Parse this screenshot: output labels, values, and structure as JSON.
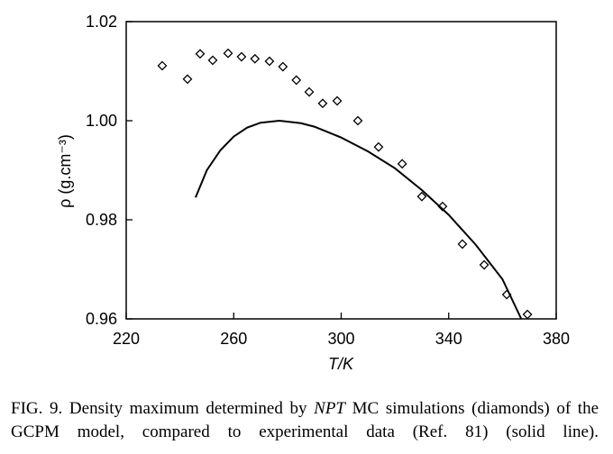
{
  "chart_data": {
    "type": "scatter",
    "xlabel": "T/K",
    "ylabel": "ρ (g.cm⁻³)",
    "xlim": [
      220,
      380
    ],
    "xticks": [
      220,
      260,
      300,
      340,
      380
    ],
    "ylim": [
      0.96,
      1.02
    ],
    "yticks": [
      0.96,
      0.98,
      {
        "value": 1.0,
        "label": "1.00"
      },
      1.02
    ],
    "series": [
      {
        "type": "scatter",
        "marker": "diamond",
        "color": "#000000",
        "x": [
          233.4,
          242.8,
          247.5,
          252.2,
          257.9,
          262.9,
          267.9,
          273.3,
          278.3,
          283.3,
          288.1,
          293.1,
          298.5,
          306.2,
          313.9,
          322.7,
          330.0,
          337.7,
          345.1,
          353.2,
          361.6,
          369.3
        ],
        "values": [
          1.0111,
          1.0084,
          1.0135,
          1.0122,
          1.0136,
          1.0129,
          1.0125,
          1.012,
          1.0109,
          1.0082,
          1.0058,
          1.0035,
          1.004,
          1.0,
          0.9947,
          0.9913,
          0.9847,
          0.9827,
          0.9751,
          0.9709,
          0.9649,
          0.9609
        ]
      },
      {
        "type": "line",
        "color": "#000000",
        "x": [
          245.8,
          250,
          255,
          260,
          265,
          270,
          277,
          285,
          290,
          300,
          310,
          320,
          330,
          340,
          350,
          360,
          367
        ],
        "values": [
          0.9845,
          0.99,
          0.994,
          0.9968,
          0.9986,
          0.9996,
          1.0,
          0.9995,
          0.9988,
          0.9966,
          0.9938,
          0.9904,
          0.986,
          0.981,
          0.975,
          0.968,
          0.96
        ]
      }
    ]
  },
  "caption": [
    "FIG. 9. Density maximum determined by ",
    "NPT",
    " MC simulations (diamonds) of the GCPM model, compared to experimental data (Ref. 81) (solid line)."
  ]
}
